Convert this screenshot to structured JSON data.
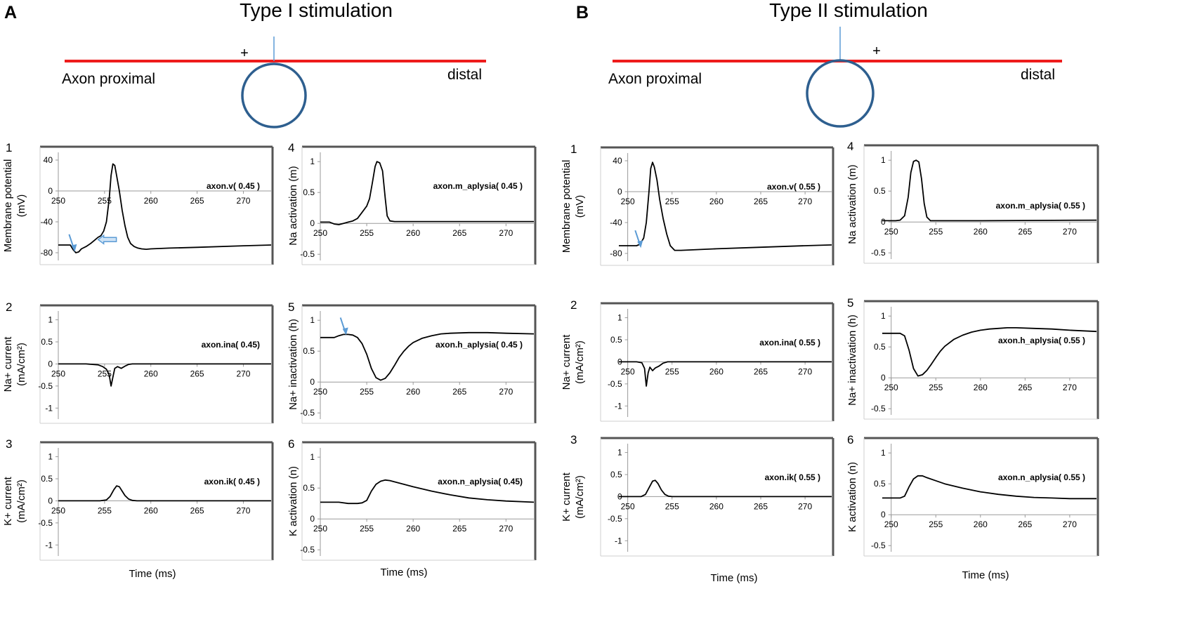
{
  "figure": {
    "panels": [
      {
        "letter": "A",
        "title": "Type I stimulation",
        "axon_left_label": "Axon proximal",
        "axon_right_label": "distal",
        "plus_sign": "+",
        "xlabel": "Time (ms)"
      },
      {
        "letter": "B",
        "title": "Type II stimulation",
        "axon_left_label": "Axon proximal",
        "axon_right_label": "distal",
        "plus_sign": "+",
        "xlabel": "Time (ms)"
      }
    ]
  },
  "colors": {
    "axon": "#ee1c1c",
    "soma": "#2e5f8f",
    "electrode": "#5b9bd5",
    "arrow": "#5b9bd5",
    "trace": "#000000",
    "frame": "#555555",
    "axis": "#9a9a9a"
  },
  "chart_data": [
    {
      "id": "A1",
      "panel": "A",
      "number": "1",
      "type": "line",
      "ylabel": [
        "Membrane potential",
        "(mV)"
      ],
      "legend": "axon.v( 0.45 )",
      "xlim": [
        250,
        273
      ],
      "ylim": [
        -90,
        50
      ],
      "xticks": [
        250,
        255,
        260,
        265,
        270
      ],
      "yticks": [
        40,
        0,
        -40,
        -80
      ],
      "yticklabels": [
        "40",
        "0",
        "-40",
        "-80"
      ],
      "x": [
        250,
        251,
        251.3,
        251.6,
        251.9,
        252.2,
        252.5,
        253,
        253.5,
        254,
        254.3,
        254.6,
        254.9,
        255.2,
        255.5,
        255.7,
        255.9,
        256.1,
        256.3,
        256.6,
        256.9,
        257.2,
        257.5,
        257.8,
        258.2,
        258.6,
        259,
        259.5,
        260,
        262,
        265,
        270,
        273
      ],
      "y": [
        -70,
        -70,
        -70,
        -76,
        -80,
        -79,
        -75,
        -72,
        -68,
        -63,
        -60,
        -58,
        -52,
        -40,
        -10,
        20,
        35,
        33,
        20,
        0,
        -25,
        -45,
        -60,
        -68,
        -72,
        -74,
        -75,
        -75.5,
        -75,
        -74,
        -73,
        -71,
        -70
      ],
      "annotations": [
        {
          "type": "arrow",
          "x": 251.7,
          "y": -78
        },
        {
          "type": "block-arrow",
          "x": 254.3,
          "y": -63
        }
      ]
    },
    {
      "id": "A2",
      "panel": "A",
      "number": "2",
      "type": "line",
      "ylabel": [
        "Na+ current",
        "(mA/cm²)"
      ],
      "legend": "axon.ina( 0.45)",
      "xlim": [
        250,
        273
      ],
      "ylim": [
        -1.25,
        1.2
      ],
      "xticks": [
        250,
        255,
        260,
        265,
        270
      ],
      "yticks": [
        1,
        0.5,
        0,
        -0.5,
        -1
      ],
      "yticklabels": [
        "1",
        "0.5",
        "0",
        "-0.5",
        "-1"
      ],
      "x": [
        250,
        253,
        254.3,
        254.8,
        255.2,
        255.5,
        255.7,
        255.9,
        256.1,
        256.4,
        256.8,
        257.2,
        257.6,
        258,
        260,
        273
      ],
      "y": [
        0,
        0,
        -0.02,
        -0.06,
        -0.12,
        -0.25,
        -0.5,
        -0.3,
        -0.1,
        -0.06,
        -0.1,
        -0.05,
        -0.01,
        0,
        0,
        0
      ]
    },
    {
      "id": "A3",
      "panel": "A",
      "number": "3",
      "type": "line",
      "ylabel": [
        "K+ current",
        "(mA/cm²)"
      ],
      "legend": "axon.ik( 0.45 )",
      "xlim": [
        250,
        273
      ],
      "ylim": [
        -1.25,
        1.2
      ],
      "xticks": [
        250,
        255,
        260,
        265,
        270
      ],
      "yticks": [
        1,
        0.5,
        0,
        -0.5,
        -1
      ],
      "yticklabels": [
        "1",
        "0.5",
        "0",
        "-0.5",
        "-1"
      ],
      "x": [
        250,
        254.5,
        255.2,
        255.6,
        256,
        256.3,
        256.6,
        256.9,
        257.2,
        257.6,
        258,
        258.5,
        273
      ],
      "y": [
        0,
        0,
        0.02,
        0.1,
        0.25,
        0.34,
        0.32,
        0.22,
        0.12,
        0.04,
        0.01,
        0,
        0
      ]
    },
    {
      "id": "A4",
      "panel": "A",
      "number": "4",
      "type": "line",
      "ylabel": [
        "Na activation (m)"
      ],
      "legend": "axon.m_aplysia( 0.45 )",
      "xlim": [
        250,
        273
      ],
      "ylim": [
        -0.6,
        1.15
      ],
      "xticks": [
        250,
        255,
        260,
        265,
        270
      ],
      "yticks": [
        1,
        0.5,
        0,
        -0.5
      ],
      "yticklabels": [
        "1",
        "0.5",
        "0",
        "-0.5"
      ],
      "x": [
        250,
        251,
        251.5,
        252,
        252.5,
        253,
        253.5,
        254,
        254.5,
        255,
        255.3,
        255.6,
        255.9,
        256.1,
        256.4,
        256.7,
        257,
        257.2,
        257.5,
        258,
        260,
        273
      ],
      "y": [
        0.02,
        0.02,
        -0.01,
        -0.02,
        0,
        0.02,
        0.04,
        0.08,
        0.18,
        0.28,
        0.4,
        0.65,
        0.92,
        1,
        0.98,
        0.85,
        0.4,
        0.12,
        0.04,
        0.03,
        0.03,
        0.03
      ]
    },
    {
      "id": "A5",
      "panel": "A",
      "number": "5",
      "type": "line",
      "ylabel": [
        "Na+ inactivation (h)"
      ],
      "legend": "axon.h_aplysia( 0.45 )",
      "xlim": [
        250,
        273
      ],
      "ylim": [
        -0.6,
        1.15
      ],
      "xticks": [
        250,
        255,
        260,
        265,
        270
      ],
      "yticks": [
        1,
        0.5,
        0,
        -0.5
      ],
      "yticklabels": [
        "1",
        "0.5",
        "0",
        "-0.5"
      ],
      "x": [
        250,
        251.5,
        252,
        252.5,
        253,
        253.5,
        254,
        254.5,
        255,
        255.5,
        256,
        256.5,
        257,
        257.5,
        258,
        258.5,
        259,
        259.5,
        260,
        261,
        262,
        263,
        264,
        266,
        268,
        270,
        273
      ],
      "y": [
        0.72,
        0.72,
        0.75,
        0.77,
        0.77,
        0.76,
        0.72,
        0.62,
        0.45,
        0.22,
        0.07,
        0.03,
        0.06,
        0.15,
        0.27,
        0.4,
        0.5,
        0.58,
        0.64,
        0.71,
        0.75,
        0.78,
        0.79,
        0.8,
        0.8,
        0.79,
        0.78
      ],
      "annotations": [
        {
          "type": "arrow",
          "x": 252.7,
          "y": 0.77
        }
      ]
    },
    {
      "id": "A6",
      "panel": "A",
      "number": "6",
      "type": "line",
      "ylabel": [
        "K activation (n)"
      ],
      "legend": "axon.n_aplysia( 0.45)",
      "xlim": [
        250,
        273
      ],
      "ylim": [
        -0.6,
        1.15
      ],
      "xticks": [
        250,
        255,
        260,
        265,
        270
      ],
      "yticks": [
        1,
        0.5,
        0,
        -0.5
      ],
      "yticklabels": [
        "1",
        "0.5",
        "0",
        "-0.5"
      ],
      "x": [
        250,
        252,
        253,
        254,
        254.5,
        255,
        255.5,
        256,
        256.5,
        257,
        257.5,
        258,
        259,
        260,
        262,
        264,
        266,
        268,
        270,
        273
      ],
      "y": [
        0.27,
        0.27,
        0.25,
        0.25,
        0.26,
        0.3,
        0.45,
        0.56,
        0.61,
        0.63,
        0.62,
        0.6,
        0.56,
        0.52,
        0.45,
        0.39,
        0.34,
        0.31,
        0.29,
        0.27
      ]
    },
    {
      "id": "B1",
      "panel": "B",
      "number": "1",
      "type": "line",
      "ylabel": [
        "Membrane potential",
        "(mV)"
      ],
      "legend": "axon.v( 0.55 )",
      "xlim": [
        249,
        273
      ],
      "ylim": [
        -90,
        50
      ],
      "xticks": [
        250,
        255,
        260,
        265,
        270
      ],
      "yticks": [
        40,
        0,
        -40,
        -80
      ],
      "yticklabels": [
        "40",
        "0",
        "-40",
        "-80"
      ],
      "x": [
        249,
        250.3,
        251,
        251.4,
        251.8,
        252.1,
        252.4,
        252.6,
        252.8,
        253,
        253.3,
        253.6,
        254,
        254.4,
        254.8,
        255.3,
        256,
        258,
        260,
        265,
        270,
        273
      ],
      "y": [
        -70,
        -70,
        -70,
        -68,
        -60,
        -40,
        0,
        30,
        38,
        32,
        15,
        -10,
        -35,
        -55,
        -70,
        -76,
        -76,
        -75,
        -74,
        -72,
        -70,
        -69
      ],
      "annotations": [
        {
          "type": "arrow",
          "x": 251.4,
          "y": -72
        }
      ]
    },
    {
      "id": "B2",
      "panel": "B",
      "number": "2",
      "type": "line",
      "ylabel": [
        "Na+ current",
        "(mA/cm²)"
      ],
      "legend": "axon.ina( 0.55 )",
      "xlim": [
        249,
        273
      ],
      "ylim": [
        -1.25,
        1.2
      ],
      "xticks": [
        250,
        255,
        260,
        265,
        270
      ],
      "yticks": [
        1,
        0.5,
        0,
        -0.5,
        -1
      ],
      "yticklabels": [
        "1",
        "0.5",
        "0",
        "-0.5",
        "-1"
      ],
      "x": [
        249,
        251,
        251.6,
        251.9,
        252.1,
        252.3,
        252.5,
        252.8,
        253.1,
        253.5,
        254,
        254.5,
        255,
        273
      ],
      "y": [
        0,
        0,
        -0.02,
        -0.15,
        -0.55,
        -0.25,
        -0.12,
        -0.2,
        -0.14,
        -0.1,
        -0.03,
        0,
        0,
        0
      ]
    },
    {
      "id": "B3",
      "panel": "B",
      "number": "3",
      "type": "line",
      "ylabel": [
        "K+ current",
        "(mA/cm²)"
      ],
      "legend": "axon.ik( 0.55 )",
      "xlim": [
        249,
        273
      ],
      "ylim": [
        -1.25,
        1.2
      ],
      "xticks": [
        250,
        255,
        260,
        265,
        270
      ],
      "yticks": [
        1,
        0.5,
        0,
        -0.5,
        -1
      ],
      "yticklabels": [
        "1",
        "0.5",
        "0",
        "-0.5",
        "-1"
      ],
      "x": [
        249,
        251.5,
        252,
        252.4,
        252.8,
        253.1,
        253.4,
        253.8,
        254.2,
        254.6,
        255,
        273
      ],
      "y": [
        0,
        0,
        0.05,
        0.2,
        0.35,
        0.37,
        0.3,
        0.15,
        0.05,
        0.01,
        0,
        0
      ]
    },
    {
      "id": "B4",
      "panel": "B",
      "number": "4",
      "type": "line",
      "ylabel": [
        "Na activation (m)"
      ],
      "legend": "axon.m_aplysia( 0.55 )",
      "xlim": [
        249,
        273
      ],
      "ylim": [
        -0.6,
        1.15
      ],
      "xticks": [
        250,
        255,
        260,
        265,
        270
      ],
      "yticks": [
        1,
        0.5,
        0,
        -0.5
      ],
      "yticklabels": [
        "1",
        "0.5",
        "0",
        "-0.5"
      ],
      "x": [
        249,
        250.5,
        251,
        251.5,
        251.9,
        252.2,
        252.5,
        252.8,
        253.1,
        253.4,
        253.7,
        254,
        254.4,
        255,
        260,
        273
      ],
      "y": [
        0.02,
        0.02,
        0.03,
        0.1,
        0.4,
        0.8,
        0.98,
        1,
        0.97,
        0.7,
        0.3,
        0.08,
        0.02,
        0.02,
        0.02,
        0.03
      ]
    },
    {
      "id": "B5",
      "panel": "B",
      "number": "5",
      "type": "line",
      "ylabel": [
        "Na+ inactivation (h)"
      ],
      "legend": "axon.h_aplysia( 0.55 )",
      "xlim": [
        249,
        273
      ],
      "ylim": [
        -0.6,
        1.15
      ],
      "xticks": [
        250,
        255,
        260,
        265,
        270
      ],
      "yticks": [
        1,
        0.5,
        0,
        -0.5
      ],
      "yticklabels": [
        "1",
        "0.5",
        "0",
        "-0.5"
      ],
      "x": [
        249,
        251,
        251.5,
        252,
        252.5,
        253,
        253.5,
        254,
        254.5,
        255,
        255.5,
        256,
        257,
        258,
        259,
        260,
        261,
        262,
        263,
        264,
        266,
        268,
        270,
        273
      ],
      "y": [
        0.72,
        0.72,
        0.68,
        0.45,
        0.15,
        0.03,
        0.05,
        0.12,
        0.22,
        0.33,
        0.43,
        0.51,
        0.62,
        0.69,
        0.74,
        0.77,
        0.79,
        0.8,
        0.81,
        0.81,
        0.8,
        0.79,
        0.77,
        0.75
      ]
    },
    {
      "id": "B6",
      "panel": "B",
      "number": "6",
      "type": "line",
      "ylabel": [
        "K activation (n)"
      ],
      "legend": "axon.n_aplysia( 0.55 )",
      "xlim": [
        249,
        273
      ],
      "ylim": [
        -0.6,
        1.15
      ],
      "xticks": [
        250,
        255,
        260,
        265,
        270
      ],
      "yticks": [
        1,
        0.5,
        0,
        -0.5
      ],
      "yticklabels": [
        "1",
        "0.5",
        "0",
        "-0.5"
      ],
      "x": [
        249,
        251,
        251.5,
        252,
        252.5,
        253,
        253.5,
        254,
        255,
        256,
        258,
        260,
        262,
        264,
        266,
        268,
        270,
        273
      ],
      "y": [
        0.27,
        0.27,
        0.3,
        0.45,
        0.58,
        0.63,
        0.63,
        0.6,
        0.55,
        0.5,
        0.43,
        0.37,
        0.33,
        0.3,
        0.28,
        0.27,
        0.26,
        0.26
      ]
    }
  ]
}
